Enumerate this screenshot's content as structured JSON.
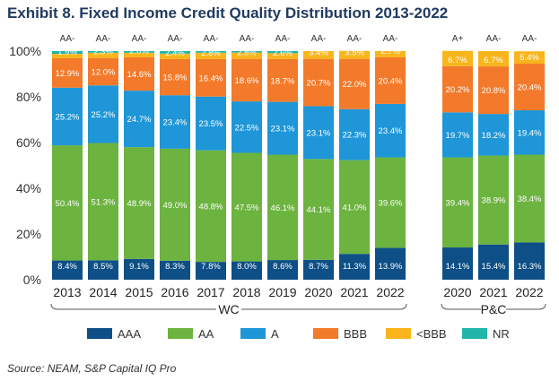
{
  "title": "Exhibit 8. Fixed Income Credit Quality Distribution 2013-2022",
  "source": "Source: NEAM, S&P Capital IQ Pro",
  "chart_data": {
    "type": "bar",
    "stacked": true,
    "title": "Exhibit 8. Fixed Income Credit Quality Distribution 2013-2022",
    "ylim": [
      0,
      100
    ],
    "yticks": [
      "0%",
      "20%",
      "40%",
      "60%",
      "80%",
      "100%"
    ],
    "groups": [
      {
        "label": "WC",
        "categories": [
          "2013",
          "2014",
          "2015",
          "2016",
          "2017",
          "2018",
          "2019",
          "2020",
          "2021",
          "2022"
        ]
      },
      {
        "label": "P&C",
        "categories": [
          "2020",
          "2021",
          "2022"
        ]
      }
    ],
    "categories": [
      "2013",
      "2014",
      "2015",
      "2016",
      "2017",
      "2018",
      "2019",
      "2020",
      "2021",
      "2022",
      "2020",
      "2021",
      "2022"
    ],
    "avg_ratings": [
      "AA-",
      "AA-",
      "AA-",
      "AA-",
      "AA-",
      "AA-",
      "AA-",
      "AA-",
      "AA-",
      "AA-",
      "A+",
      "AA-",
      "AA-"
    ],
    "series": [
      {
        "name": "AAA",
        "color": "#0d4f86",
        "values": [
          8.4,
          8.5,
          9.1,
          8.3,
          7.8,
          8.0,
          8.6,
          8.7,
          11.3,
          13.9,
          14.1,
          15.4,
          16.3
        ],
        "labels": [
          "8.4%",
          "8.5%",
          "9.1%",
          "8.3%",
          "7.8%",
          "8.0%",
          "8.6%",
          "8.7%",
          "11.3%",
          "13.9%",
          "14.1%",
          "15.4%",
          "16.3%"
        ]
      },
      {
        "name": "AA",
        "color": "#6cb33f",
        "values": [
          50.4,
          51.3,
          48.9,
          49.0,
          48.8,
          47.5,
          46.1,
          44.1,
          41.0,
          39.6,
          39.4,
          38.9,
          38.4
        ],
        "labels": [
          "50.4%",
          "51.3%",
          "48.9%",
          "49.0%",
          "48.8%",
          "47.5%",
          "46.1%",
          "44.1%",
          "41.0%",
          "39.6%",
          "39.4%",
          "38.9%",
          "38.4%"
        ]
      },
      {
        "name": "A",
        "color": "#1e96d7",
        "values": [
          25.2,
          25.2,
          24.7,
          23.4,
          23.5,
          22.5,
          23.1,
          23.1,
          22.3,
          23.4,
          19.7,
          18.2,
          19.4
        ],
        "labels": [
          "25.2%",
          "25.2%",
          "24.7%",
          "23.4%",
          "23.5%",
          "22.5%",
          "23.1%",
          "23.1%",
          "22.3%",
          "23.4%",
          "19.7%",
          "18.2%",
          "19.4%"
        ]
      },
      {
        "name": "BBB",
        "color": "#f37a2a",
        "values": [
          12.9,
          12.0,
          14.6,
          15.8,
          16.4,
          18.6,
          18.7,
          20.7,
          22.0,
          20.4,
          20.2,
          20.8,
          20.4
        ],
        "labels": [
          "12.9%",
          "12.0%",
          "14.6%",
          "15.8%",
          "16.4%",
          "18.6%",
          "18.7%",
          "20.7%",
          "22.0%",
          "20.4%",
          "20.2%",
          "20.8%",
          "20.4%"
        ]
      },
      {
        "name": "<BBB",
        "color": "#f9b51b",
        "values": [
          1.9,
          2.3,
          2.0,
          2.4,
          2.8,
          2.8,
          2.6,
          3.4,
          3.5,
          2.7,
          6.7,
          6.7,
          5.4
        ],
        "labels": [
          "1.9%",
          "2.3%",
          "2.0%",
          "2.4%",
          "2.8%",
          "2.8%",
          "2.6%",
          "3.4%",
          "3.5%",
          "2.7%",
          "6.7%",
          "6.7%",
          "5.4%"
        ]
      },
      {
        "name": "NR",
        "color": "#1fb5a8",
        "values": [
          1.2,
          0.7,
          0.7,
          1.1,
          0.7,
          0.6,
          0.9,
          0.0,
          0.0,
          0.0,
          0.0,
          0.0,
          0.0
        ],
        "labels": []
      }
    ]
  }
}
